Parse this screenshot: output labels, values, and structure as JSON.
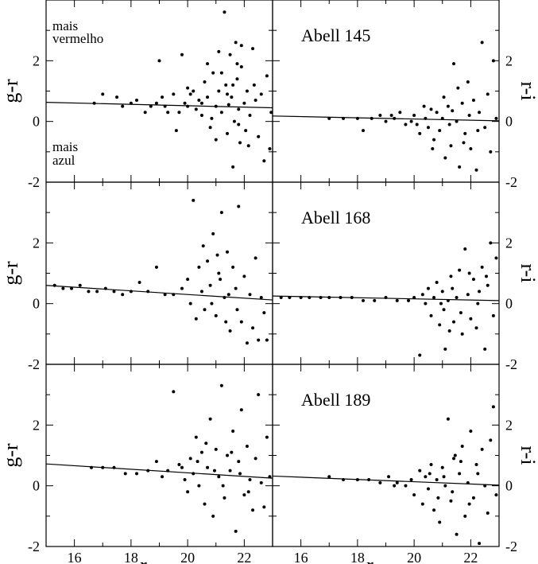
{
  "chart_data": [
    {
      "type": "scatter",
      "panel": "top-left",
      "title": "",
      "xlabel": "",
      "ylabel": "g-r",
      "xlim": [
        15,
        23
      ],
      "ylim": [
        -2,
        4
      ],
      "xticks": [
        16,
        18,
        20,
        22
      ],
      "yticks": [
        -2,
        0,
        2
      ],
      "annotations": [
        [
          "mais",
          "vermelho"
        ],
        [
          "mais",
          "azul"
        ]
      ],
      "fit_line": {
        "x": [
          15,
          23
        ],
        "y": [
          0.63,
          0.45
        ]
      },
      "points": [
        [
          16.7,
          0.6
        ],
        [
          17,
          0.9
        ],
        [
          17.5,
          0.8
        ],
        [
          17.7,
          0.5
        ],
        [
          18,
          0.6
        ],
        [
          18.2,
          0.7
        ],
        [
          18.5,
          0.3
        ],
        [
          18.7,
          0.5
        ],
        [
          18.9,
          0.6
        ],
        [
          19.0,
          2.0
        ],
        [
          19.1,
          0.8
        ],
        [
          19.2,
          0.5
        ],
        [
          19.3,
          0.3
        ],
        [
          19.5,
          0.9
        ],
        [
          19.6,
          -0.3
        ],
        [
          19.8,
          2.2
        ],
        [
          19.9,
          0.6
        ],
        [
          20.0,
          0.5
        ],
        [
          20.1,
          0.9
        ],
        [
          20.2,
          1.0
        ],
        [
          20.3,
          0.4
        ],
        [
          20.4,
          0.7
        ],
        [
          20.5,
          0.2
        ],
        [
          20.6,
          1.3
        ],
        [
          20.7,
          0.8
        ],
        [
          20.8,
          -0.2
        ],
        [
          20.9,
          1.6
        ],
        [
          21.0,
          0.5
        ],
        [
          21.1,
          1.0
        ],
        [
          21.2,
          0.3
        ],
        [
          21.3,
          3.6
        ],
        [
          21.35,
          1.2
        ],
        [
          21.4,
          -0.4
        ],
        [
          21.5,
          2.2
        ],
        [
          21.55,
          0.8
        ],
        [
          21.6,
          -1.5
        ],
        [
          21.65,
          0.0
        ],
        [
          21.7,
          2.6
        ],
        [
          21.75,
          1.4
        ],
        [
          21.8,
          0.4
        ],
        [
          21.85,
          -0.7
        ],
        [
          21.9,
          1.8
        ],
        [
          22.0,
          0.6
        ],
        [
          22.05,
          -0.3
        ],
        [
          22.1,
          1.0
        ],
        [
          22.2,
          0.2
        ],
        [
          22.3,
          2.4
        ],
        [
          22.4,
          0.7
        ],
        [
          22.5,
          -0.5
        ],
        [
          22.6,
          0.9
        ],
        [
          22.7,
          -1.3
        ],
        [
          22.8,
          1.5
        ],
        [
          22.9,
          -0.9
        ],
        [
          22.95,
          0.3
        ],
        [
          20.7,
          1.9
        ],
        [
          21.0,
          -0.6
        ],
        [
          21.2,
          1.6
        ],
        [
          21.4,
          0.9
        ],
        [
          21.6,
          1.2
        ],
        [
          21.8,
          -0.1
        ],
        [
          20.5,
          0.6
        ],
        [
          20.0,
          1.1
        ],
        [
          19.7,
          0.3
        ],
        [
          21.1,
          2.3
        ],
        [
          21.9,
          2.5
        ],
        [
          22.15,
          -0.8
        ],
        [
          20.85,
          0.1
        ],
        [
          21.45,
          0.55
        ],
        [
          21.75,
          1.9
        ],
        [
          22.35,
          1.2
        ]
      ]
    },
    {
      "type": "scatter",
      "panel": "top-right",
      "title": "Abell 145",
      "xlabel": "",
      "ylabel": "r-i",
      "xlim": [
        15,
        23
      ],
      "ylim": [
        -2,
        4
      ],
      "xticks": [
        16,
        18,
        20,
        22
      ],
      "yticks": [
        -2,
        0,
        2
      ],
      "fit_line": {
        "x": [
          15,
          23
        ],
        "y": [
          0.18,
          0.02
        ]
      },
      "points": [
        [
          17,
          0.1
        ],
        [
          17.5,
          0.1
        ],
        [
          18,
          0.1
        ],
        [
          18.5,
          0.1
        ],
        [
          18.8,
          0.2
        ],
        [
          19,
          0.0
        ],
        [
          19.3,
          0.1
        ],
        [
          19.5,
          0.3
        ],
        [
          19.7,
          -0.1
        ],
        [
          19.9,
          0.0
        ],
        [
          20.0,
          0.2
        ],
        [
          20.2,
          -0.4
        ],
        [
          20.4,
          0.1
        ],
        [
          20.5,
          -0.2
        ],
        [
          20.6,
          0.4
        ],
        [
          20.7,
          -0.6
        ],
        [
          20.8,
          0.3
        ],
        [
          20.9,
          -0.3
        ],
        [
          21.0,
          0.1
        ],
        [
          21.1,
          -1.2
        ],
        [
          21.2,
          0.5
        ],
        [
          21.3,
          -0.8
        ],
        [
          21.4,
          1.9
        ],
        [
          21.5,
          0.0
        ],
        [
          21.6,
          -1.5
        ],
        [
          21.7,
          0.6
        ],
        [
          21.8,
          -0.4
        ],
        [
          21.9,
          1.3
        ],
        [
          22.0,
          -0.9
        ],
        [
          22.1,
          0.7
        ],
        [
          22.2,
          -1.6
        ],
        [
          22.3,
          0.3
        ],
        [
          22.4,
          2.6
        ],
        [
          22.5,
          -0.2
        ],
        [
          22.6,
          0.9
        ],
        [
          22.7,
          -1.0
        ],
        [
          22.8,
          2.0
        ],
        [
          22.9,
          0.1
        ],
        [
          21.05,
          0.8
        ],
        [
          21.25,
          -0.1
        ],
        [
          21.55,
          1.1
        ],
        [
          21.75,
          -0.7
        ],
        [
          20.35,
          0.5
        ],
        [
          20.65,
          -0.9
        ],
        [
          21.95,
          0.2
        ],
        [
          22.25,
          -0.3
        ],
        [
          18.2,
          -0.3
        ],
        [
          19.2,
          0.2
        ],
        [
          20.1,
          -0.1
        ],
        [
          21.35,
          0.35
        ]
      ]
    },
    {
      "type": "scatter",
      "panel": "middle-left",
      "title": "",
      "xlabel": "",
      "ylabel": "g-r",
      "xlim": [
        15,
        23
      ],
      "ylim": [
        -2,
        4
      ],
      "xticks": [
        16,
        18,
        20,
        22
      ],
      "yticks": [
        -2,
        0,
        2
      ],
      "fit_line": {
        "x": [
          15,
          23
        ],
        "y": [
          0.6,
          0.12
        ]
      },
      "points": [
        [
          15.3,
          0.6
        ],
        [
          15.6,
          0.5
        ],
        [
          15.9,
          0.5
        ],
        [
          16.2,
          0.6
        ],
        [
          16.5,
          0.4
        ],
        [
          16.8,
          0.4
        ],
        [
          17.1,
          0.5
        ],
        [
          17.4,
          0.4
        ],
        [
          17.7,
          0.3
        ],
        [
          18.0,
          0.4
        ],
        [
          18.3,
          0.7
        ],
        [
          18.6,
          0.4
        ],
        [
          18.9,
          1.2
        ],
        [
          19.2,
          0.3
        ],
        [
          19.5,
          0.3
        ],
        [
          19.8,
          0.5
        ],
        [
          20.0,
          0.8
        ],
        [
          20.1,
          0.0
        ],
        [
          20.2,
          3.4
        ],
        [
          20.3,
          -0.5
        ],
        [
          20.4,
          1.2
        ],
        [
          20.5,
          0.4
        ],
        [
          20.6,
          -0.2
        ],
        [
          20.7,
          1.4
        ],
        [
          20.8,
          0.6
        ],
        [
          20.9,
          2.3
        ],
        [
          21.0,
          -0.4
        ],
        [
          21.1,
          1.0
        ],
        [
          21.2,
          3.0
        ],
        [
          21.3,
          0.2
        ],
        [
          21.4,
          1.7
        ],
        [
          21.5,
          -0.9
        ],
        [
          21.6,
          1.2
        ],
        [
          21.7,
          0.5
        ],
        [
          21.8,
          3.2
        ],
        [
          21.9,
          -0.6
        ],
        [
          22.0,
          0.9
        ],
        [
          22.1,
          -1.3
        ],
        [
          22.2,
          0.3
        ],
        [
          22.3,
          -0.8
        ],
        [
          22.4,
          1.5
        ],
        [
          22.5,
          -1.2
        ],
        [
          22.6,
          0.2
        ],
        [
          22.7,
          -0.3
        ],
        [
          22.8,
          -1.2
        ],
        [
          20.55,
          1.9
        ],
        [
          20.85,
          0.0
        ],
        [
          21.15,
          0.8
        ],
        [
          21.45,
          0.3
        ],
        [
          21.75,
          -0.2
        ],
        [
          21.05,
          1.6
        ],
        [
          21.35,
          -0.6
        ]
      ]
    },
    {
      "type": "scatter",
      "panel": "middle-right",
      "title": "Abell 168",
      "xlabel": "",
      "ylabel": "r-i",
      "xlim": [
        15,
        23
      ],
      "ylim": [
        -2,
        4
      ],
      "xticks": [
        16,
        18,
        20,
        22
      ],
      "yticks": [
        -2,
        0,
        2
      ],
      "fit_line": {
        "x": [
          15,
          23
        ],
        "y": [
          0.25,
          0.1
        ]
      },
      "points": [
        [
          15.3,
          0.2
        ],
        [
          15.6,
          0.2
        ],
        [
          16.0,
          0.2
        ],
        [
          16.3,
          0.2
        ],
        [
          16.7,
          0.2
        ],
        [
          17.0,
          0.2
        ],
        [
          17.4,
          0.2
        ],
        [
          17.8,
          0.2
        ],
        [
          18.2,
          0.1
        ],
        [
          18.6,
          0.1
        ],
        [
          19.0,
          0.2
        ],
        [
          19.4,
          0.1
        ],
        [
          19.8,
          0.1
        ],
        [
          20.0,
          0.2
        ],
        [
          20.2,
          -1.7
        ],
        [
          20.3,
          0.3
        ],
        [
          20.4,
          0.0
        ],
        [
          20.5,
          0.5
        ],
        [
          20.6,
          -0.4
        ],
        [
          20.7,
          0.2
        ],
        [
          20.8,
          0.7
        ],
        [
          20.9,
          -0.7
        ],
        [
          21.0,
          0.4
        ],
        [
          21.1,
          -1.5
        ],
        [
          21.2,
          0.1
        ],
        [
          21.3,
          0.9
        ],
        [
          21.4,
          -0.6
        ],
        [
          21.5,
          0.2
        ],
        [
          21.6,
          1.1
        ],
        [
          21.7,
          -1.0
        ],
        [
          21.8,
          1.8
        ],
        [
          21.9,
          0.3
        ],
        [
          22.0,
          -0.5
        ],
        [
          22.1,
          0.8
        ],
        [
          22.2,
          -0.8
        ],
        [
          22.3,
          0.4
        ],
        [
          22.4,
          1.2
        ],
        [
          22.5,
          -1.5
        ],
        [
          22.6,
          0.6
        ],
        [
          22.7,
          2.0
        ],
        [
          22.8,
          -0.4
        ],
        [
          22.9,
          1.5
        ],
        [
          21.05,
          -0.2
        ],
        [
          21.35,
          0.5
        ],
        [
          21.65,
          -0.3
        ],
        [
          21.95,
          1.0
        ],
        [
          22.25,
          0.0
        ],
        [
          20.95,
          0.0
        ],
        [
          21.25,
          -0.9
        ],
        [
          22.55,
          0.9
        ]
      ]
    },
    {
      "type": "scatter",
      "panel": "bottom-left",
      "title": "",
      "xlabel": "r",
      "ylabel": "g-r",
      "xlim": [
        15,
        23
      ],
      "ylim": [
        -2,
        4
      ],
      "xticks": [
        16,
        18,
        20,
        22
      ],
      "yticks": [
        -2,
        0,
        2
      ],
      "fit_line": {
        "x": [
          15,
          23
        ],
        "y": [
          0.72,
          0.25
        ]
      },
      "points": [
        [
          16.6,
          0.6
        ],
        [
          17.0,
          0.6
        ],
        [
          17.4,
          0.6
        ],
        [
          17.8,
          0.4
        ],
        [
          18.2,
          0.4
        ],
        [
          18.6,
          0.5
        ],
        [
          18.9,
          0.8
        ],
        [
          19.1,
          0.3
        ],
        [
          19.3,
          0.5
        ],
        [
          19.5,
          3.1
        ],
        [
          19.7,
          0.7
        ],
        [
          19.9,
          0.2
        ],
        [
          20.0,
          -0.2
        ],
        [
          20.1,
          0.9
        ],
        [
          20.2,
          0.4
        ],
        [
          20.3,
          1.6
        ],
        [
          20.4,
          0.0
        ],
        [
          20.5,
          1.1
        ],
        [
          20.6,
          -0.6
        ],
        [
          20.7,
          0.6
        ],
        [
          20.8,
          2.2
        ],
        [
          20.9,
          -1.0
        ],
        [
          21.0,
          1.2
        ],
        [
          21.1,
          0.3
        ],
        [
          21.2,
          3.3
        ],
        [
          21.3,
          -0.4
        ],
        [
          21.4,
          1.0
        ],
        [
          21.5,
          0.5
        ],
        [
          21.6,
          1.8
        ],
        [
          21.7,
          -1.5
        ],
        [
          21.8,
          0.8
        ],
        [
          21.9,
          2.5
        ],
        [
          22.0,
          -0.3
        ],
        [
          22.1,
          1.3
        ],
        [
          22.2,
          0.2
        ],
        [
          22.3,
          -0.8
        ],
        [
          22.4,
          0.9
        ],
        [
          22.5,
          3.0
        ],
        [
          22.6,
          0.1
        ],
        [
          22.7,
          -0.7
        ],
        [
          22.8,
          1.6
        ],
        [
          22.9,
          0.3
        ],
        [
          20.65,
          1.4
        ],
        [
          20.95,
          0.5
        ],
        [
          21.25,
          0.0
        ],
        [
          21.55,
          1.1
        ],
        [
          21.85,
          0.4
        ],
        [
          22.15,
          -0.2
        ],
        [
          19.8,
          0.6
        ],
        [
          20.35,
          0.8
        ]
      ]
    },
    {
      "type": "scatter",
      "panel": "bottom-right",
      "title": "Abell 189",
      "xlabel": "r",
      "ylabel": "r-i",
      "xlim": [
        15,
        23
      ],
      "ylim": [
        -2,
        4
      ],
      "xticks": [
        16,
        18,
        20,
        22
      ],
      "yticks": [
        -2,
        0,
        2
      ],
      "fit_line": {
        "x": [
          15,
          23
        ],
        "y": [
          0.32,
          0.02
        ]
      },
      "points": [
        [
          17.0,
          0.3
        ],
        [
          17.5,
          0.2
        ],
        [
          18.0,
          0.2
        ],
        [
          18.4,
          0.2
        ],
        [
          18.8,
          0.1
        ],
        [
          19.1,
          0.3
        ],
        [
          19.4,
          0.1
        ],
        [
          19.7,
          0.0
        ],
        [
          19.9,
          0.2
        ],
        [
          20.0,
          -0.3
        ],
        [
          20.2,
          0.5
        ],
        [
          20.3,
          -0.6
        ],
        [
          20.4,
          0.3
        ],
        [
          20.5,
          -0.1
        ],
        [
          20.6,
          0.7
        ],
        [
          20.7,
          -0.8
        ],
        [
          20.8,
          0.2
        ],
        [
          20.9,
          -1.2
        ],
        [
          21.0,
          0.6
        ],
        [
          21.1,
          0.0
        ],
        [
          21.2,
          2.2
        ],
        [
          21.3,
          -0.5
        ],
        [
          21.4,
          0.9
        ],
        [
          21.5,
          -1.6
        ],
        [
          21.6,
          0.4
        ],
        [
          21.7,
          1.3
        ],
        [
          21.8,
          -1.0
        ],
        [
          21.9,
          0.1
        ],
        [
          22.0,
          1.8
        ],
        [
          22.1,
          -0.4
        ],
        [
          22.2,
          0.7
        ],
        [
          22.3,
          -1.9
        ],
        [
          22.4,
          1.2
        ],
        [
          22.5,
          0.0
        ],
        [
          22.6,
          -0.9
        ],
        [
          22.7,
          1.5
        ],
        [
          22.8,
          2.6
        ],
        [
          22.9,
          -0.3
        ],
        [
          21.05,
          0.3
        ],
        [
          21.35,
          -0.2
        ],
        [
          21.65,
          0.8
        ],
        [
          21.95,
          -0.6
        ],
        [
          22.25,
          0.4
        ],
        [
          20.55,
          0.4
        ],
        [
          20.85,
          -0.4
        ],
        [
          19.3,
          0.0
        ],
        [
          21.45,
          1.0
        ]
      ]
    }
  ]
}
